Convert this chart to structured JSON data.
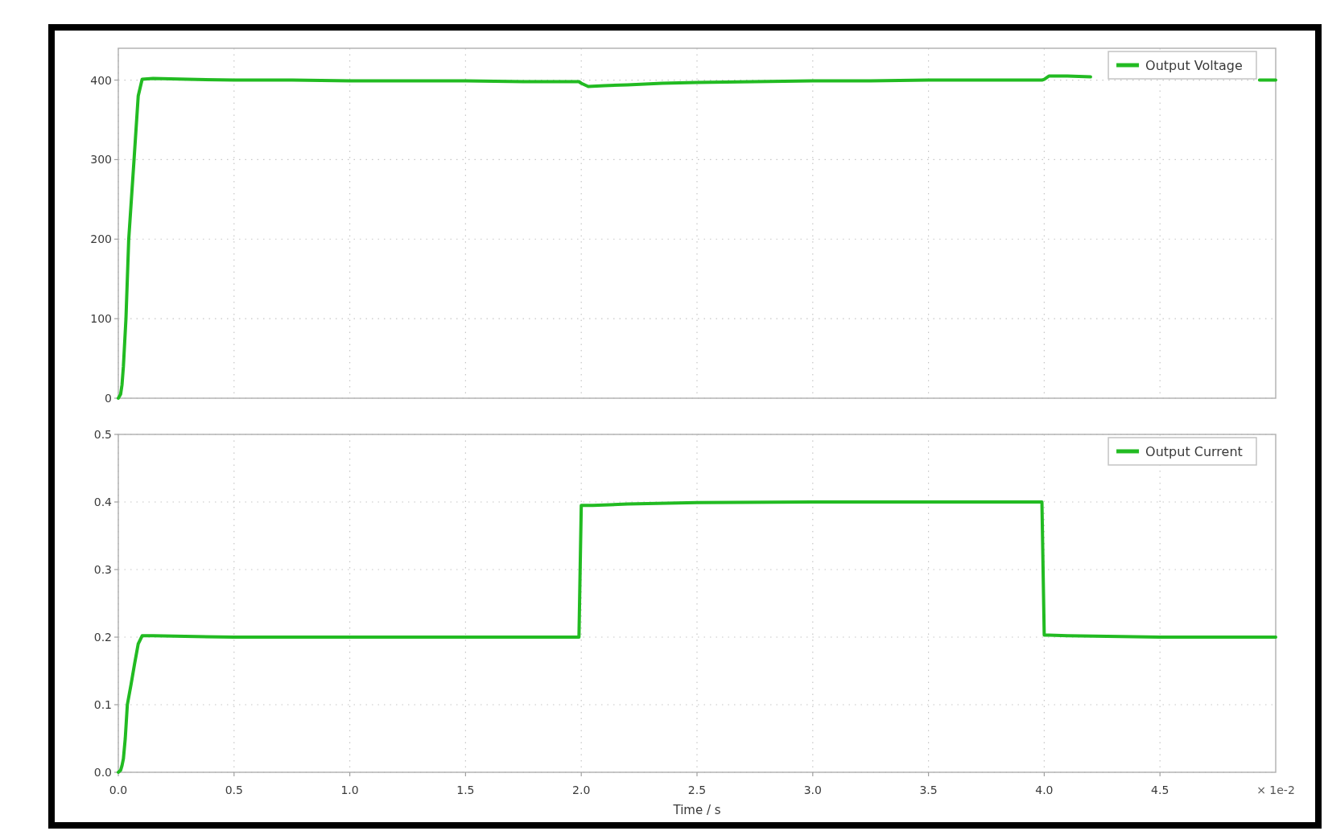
{
  "chart_data": [
    {
      "type": "line",
      "x": [
        0,
        0.01,
        0.016,
        0.022,
        0.033,
        0.045,
        0.068,
        0.086,
        0.103,
        0.15,
        0.3,
        0.5,
        0.75,
        1,
        1.25,
        1.5,
        1.75,
        1.99,
        2,
        2.03,
        2.1,
        2.2,
        2.35,
        2.5,
        2.75,
        3,
        3.25,
        3.5,
        3.75,
        3.99,
        4,
        4.02,
        4.1,
        4.2,
        4.6,
        4.93,
        5
      ],
      "series": [
        {
          "name": "Output Voltage",
          "color": "#22bb22",
          "values": [
            0,
            5,
            17,
            40,
            100,
            200,
            300,
            380,
            401,
            402,
            401,
            400,
            400,
            399,
            399,
            399,
            398,
            398,
            396,
            392,
            393,
            394,
            396,
            397,
            398,
            399,
            399,
            400,
            400,
            400,
            401,
            405,
            405,
            404,
            null,
            400,
            400
          ]
        }
      ],
      "xlim": [
        0,
        5
      ],
      "xticks": [
        0,
        0.5,
        1,
        1.5,
        2,
        2.5,
        3,
        3.5,
        4,
        4.5
      ],
      "ylim": [
        0,
        440
      ],
      "yticks": [
        0,
        100,
        200,
        300,
        400
      ],
      "grid": true,
      "legend": "top right",
      "tick_labels": "y"
    },
    {
      "type": "line",
      "x": [
        0,
        0.01,
        0.016,
        0.022,
        0.03,
        0.039,
        0.055,
        0.07,
        0.086,
        0.103,
        0.15,
        0.5,
        1,
        1.5,
        1.99,
        2,
        2.05,
        2.2,
        2.5,
        3,
        3.5,
        3.99,
        4,
        4.02,
        4.1,
        4.5,
        5
      ],
      "series": [
        {
          "name": "Output Current",
          "color": "#22bb22",
          "values": [
            0,
            0.003,
            0.01,
            0.02,
            0.05,
            0.1,
            0.13,
            0.16,
            0.19,
            0.202,
            0.202,
            0.2,
            0.2,
            0.2,
            0.2,
            0.395,
            0.395,
            0.397,
            0.399,
            0.4,
            0.4,
            0.4,
            0.203,
            0.203,
            0.202,
            0.2,
            0.2
          ]
        }
      ],
      "xlim": [
        0,
        5
      ],
      "xticks": [
        {
          "value": 0,
          "label": "0.0"
        },
        0.5,
        {
          "value": 1,
          "label": "1.0"
        },
        1.5,
        {
          "value": 2,
          "label": "2.0"
        },
        2.5,
        {
          "value": 3,
          "label": "3.0"
        },
        3.5,
        {
          "value": 4,
          "label": "4.0"
        },
        4.5
      ],
      "ylim": [
        0,
        0.5
      ],
      "yticks": [
        {
          "value": 0,
          "label": "0.0"
        },
        0.1,
        0.2,
        0.3,
        0.4,
        0.5
      ],
      "grid": true,
      "legend": "top right",
      "xlabel": "Time / s",
      "annotations": [
        "× 1e-2"
      ]
    }
  ]
}
